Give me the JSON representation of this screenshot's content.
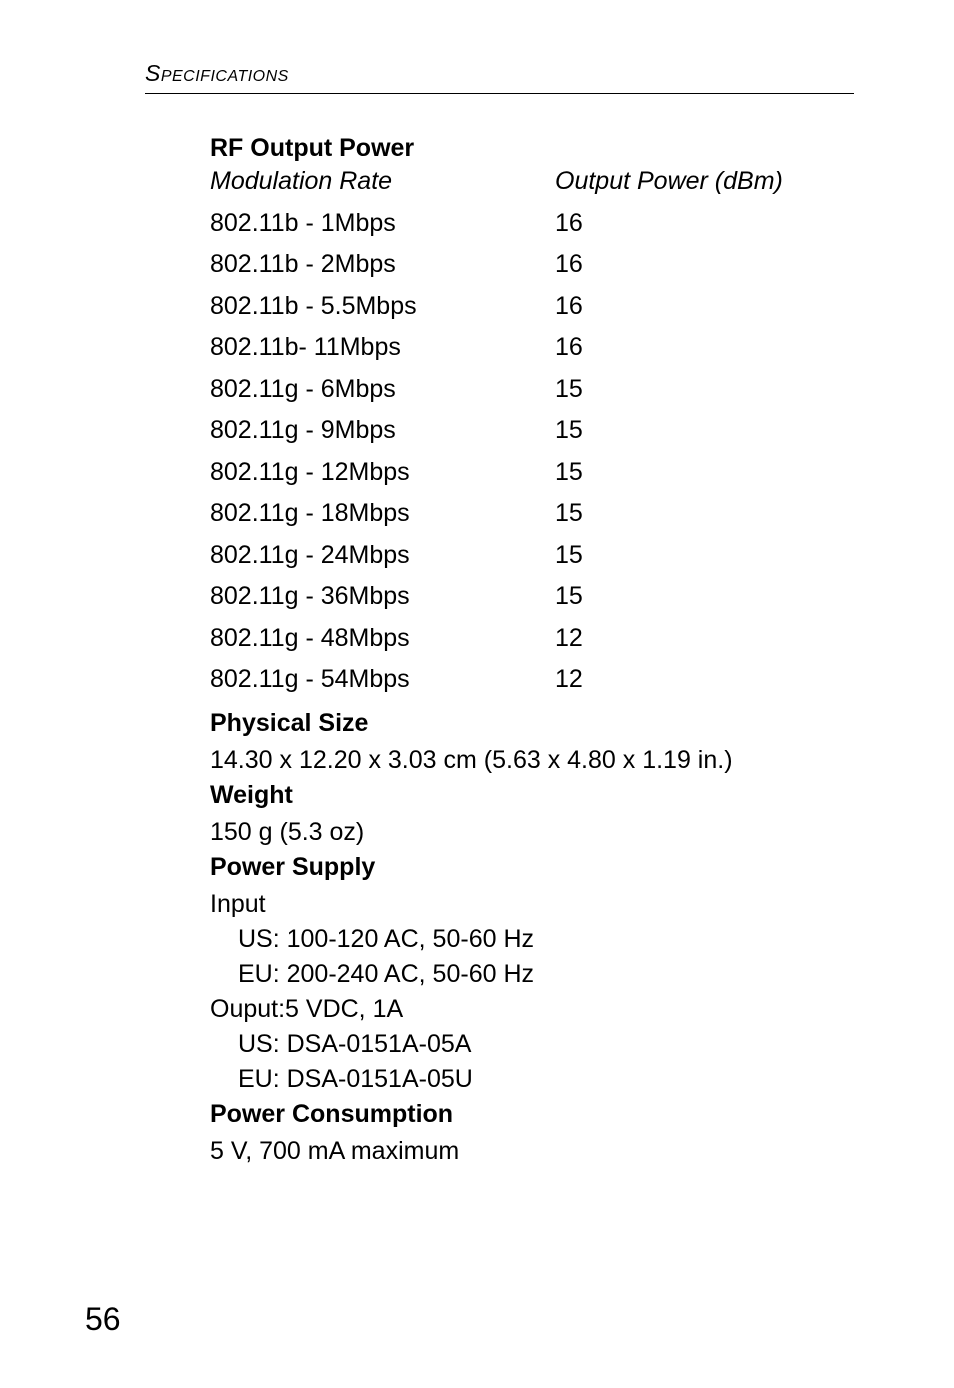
{
  "runningHeader": "Specifications",
  "rfOutputPower": {
    "heading": "RF Output Power",
    "colHeaders": {
      "left": "Modulation Rate",
      "right": "Output Power (dBm)"
    },
    "rows": [
      {
        "rate": "802.11b - 1Mbps",
        "power": "16"
      },
      {
        "rate": "802.11b - 2Mbps",
        "power": "16"
      },
      {
        "rate": "802.11b - 5.5Mbps",
        "power": "16"
      },
      {
        "rate": "802.11b- 11Mbps",
        "power": "16"
      },
      {
        "rate": "802.11g - 6Mbps",
        "power": "15"
      },
      {
        "rate": "802.11g - 9Mbps",
        "power": "15"
      },
      {
        "rate": "802.11g - 12Mbps",
        "power": "15"
      },
      {
        "rate": "802.11g - 18Mbps",
        "power": "15"
      },
      {
        "rate": "802.11g - 24Mbps",
        "power": "15"
      },
      {
        "rate": "802.11g - 36Mbps",
        "power": "15"
      },
      {
        "rate": "802.11g - 48Mbps",
        "power": "12"
      },
      {
        "rate": "802.11g - 54Mbps",
        "power": "12"
      }
    ]
  },
  "physicalSize": {
    "heading": "Physical Size",
    "value": "14.30 x 12.20 x 3.03 cm (5.63 x 4.80 x 1.19 in.)"
  },
  "weight": {
    "heading": "Weight",
    "value": "150 g (5.3 oz)"
  },
  "powerSupply": {
    "heading": "Power Supply",
    "inputLabel": "Input",
    "inputUS": "US: 100-120 AC, 50-60 Hz",
    "inputEU": "EU: 200-240 AC, 50-60 Hz",
    "outputLabel": "Ouput:5 VDC, 1A",
    "outputUS": "US: DSA-0151A-05A",
    "outputEU": "EU: DSA-0151A-05U"
  },
  "powerConsumption": {
    "heading": "Power Consumption",
    "value": "5 V, 700 mA maximum"
  },
  "pageNumber": "56"
}
